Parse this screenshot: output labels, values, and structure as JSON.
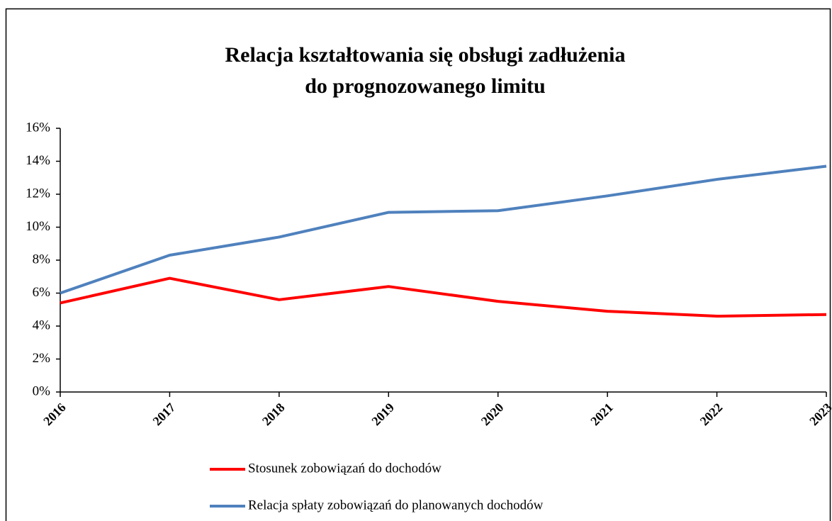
{
  "chart_data": {
    "type": "line",
    "title": [
      "Relacja kształtowania się obsługi zadłużenia",
      "do prognozowanego limitu"
    ],
    "categories": [
      "2016",
      "2017",
      "2018",
      "2019",
      "2020",
      "2021",
      "2022",
      "2023"
    ],
    "series": [
      {
        "name": "Stosunek zobowiązań do dochodów",
        "color": "#ff0000",
        "values": [
          5.4,
          6.9,
          5.6,
          6.4,
          5.5,
          4.9,
          4.6,
          4.7
        ]
      },
      {
        "name": "Relacja spłaty zobowiązań do planowanych dochodów",
        "color": "#4f81bd",
        "values": [
          6.0,
          8.3,
          9.4,
          10.9,
          11.0,
          11.9,
          12.9,
          13.7
        ]
      }
    ],
    "ylim": [
      0,
      16
    ],
    "yticks": [
      {
        "value": 0,
        "label": "0%"
      },
      {
        "value": 2,
        "label": "2%"
      },
      {
        "value": 4,
        "label": "4%"
      },
      {
        "value": 6,
        "label": "6%"
      },
      {
        "value": 8,
        "label": "8%"
      },
      {
        "value": 10,
        "label": "10%"
      },
      {
        "value": 12,
        "label": "12%"
      },
      {
        "value": 14,
        "label": "14%"
      },
      {
        "value": 16,
        "label": "16%"
      }
    ],
    "grid": false,
    "legend": "bottom"
  }
}
